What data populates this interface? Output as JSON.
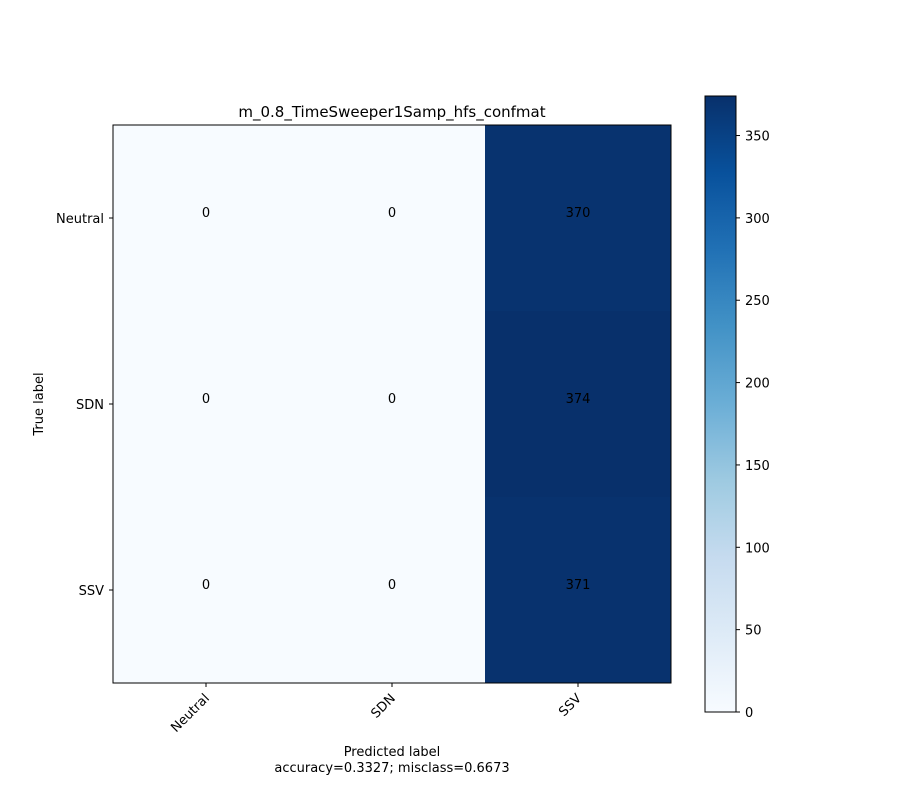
{
  "chart_data": {
    "type": "heatmap",
    "title": "m_0.8_TimeSweeper1Samp_hfs_confmat",
    "xlabel": "Predicted label",
    "xlabel_note": "accuracy=0.3327; misclass=0.6673",
    "ylabel": "True label",
    "x_categories": [
      "Neutral",
      "SDN",
      "SSV"
    ],
    "y_categories": [
      "Neutral",
      "SDN",
      "SSV"
    ],
    "values": [
      [
        0,
        0,
        370
      ],
      [
        0,
        0,
        374
      ],
      [
        0,
        0,
        371
      ]
    ],
    "colormap": "Blues",
    "colorbar": {
      "min": 0,
      "max": 374,
      "ticks": [
        0,
        50,
        100,
        150,
        200,
        250,
        300,
        350
      ]
    },
    "colors": {
      "low": "#f7fbff",
      "high": "#08306b"
    }
  }
}
